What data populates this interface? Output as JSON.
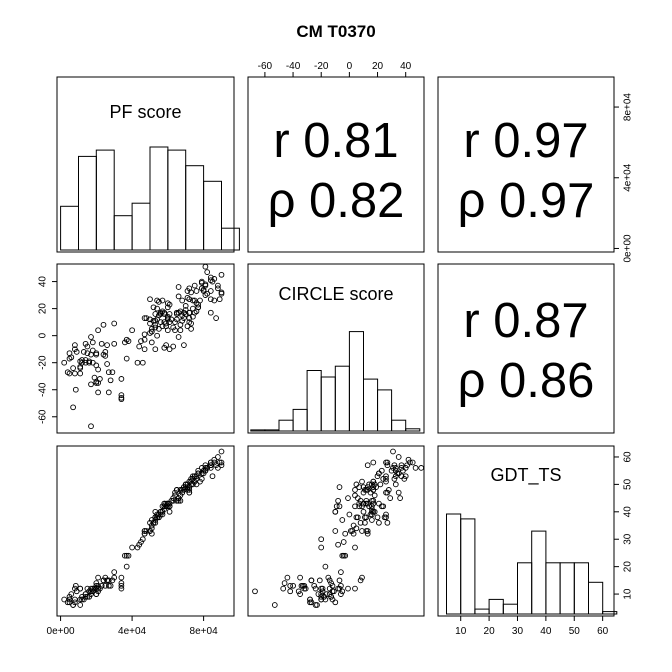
{
  "chart_data": {
    "type": "scatter",
    "title": "CM T0370",
    "variables": [
      "PF score",
      "CIRCLE score",
      "GDT_TS"
    ],
    "axes": {
      "pf": {
        "ticks": [
          0,
          40000,
          80000
        ],
        "tick_labels": [
          "0e+00",
          "4e+04",
          "8e+04"
        ],
        "range": [
          -2000,
          97000
        ]
      },
      "circle": {
        "ticks": [
          -60,
          -40,
          -20,
          0,
          20,
          40
        ],
        "tick_labels": [
          "-60",
          "-40",
          "-20",
          "0",
          "20",
          "40"
        ],
        "range": [
          -72,
          53
        ]
      },
      "gdt": {
        "ticks": [
          10,
          20,
          30,
          40,
          50,
          60
        ],
        "tick_labels": [
          "10",
          "20",
          "30",
          "40",
          "50",
          "60"
        ],
        "range": [
          2,
          64
        ]
      }
    },
    "correlations": [
      {
        "row": 0,
        "col": 1,
        "r_label": "r 0.81",
        "rho_label": "ρ 0.82"
      },
      {
        "row": 0,
        "col": 2,
        "r_label": "r 0.97",
        "rho_label": "ρ 0.97"
      },
      {
        "row": 1,
        "col": 2,
        "r_label": "r 0.87",
        "rho_label": "ρ 0.86"
      }
    ],
    "histograms": {
      "pf": {
        "edges": [
          0,
          10000,
          20000,
          30000,
          40000,
          50000,
          60000,
          70000,
          80000,
          90000,
          100000
        ],
        "counts": [
          14,
          30,
          32,
          11,
          15,
          33,
          32,
          27,
          22,
          7
        ]
      },
      "circle": {
        "edges": [
          -70,
          -60,
          -50,
          -40,
          -30,
          -20,
          -10,
          0,
          10,
          20,
          30,
          40,
          50
        ],
        "counts": [
          0.5,
          0.5,
          5,
          10,
          28,
          25,
          30,
          46,
          24,
          19,
          5,
          1
        ]
      },
      "gdt": {
        "edges": [
          5,
          10,
          15,
          20,
          25,
          30,
          35,
          40,
          45,
          50,
          55,
          60,
          65
        ],
        "counts": [
          41,
          39,
          2,
          6,
          4,
          21,
          34,
          21,
          21,
          21,
          13,
          1
        ]
      }
    },
    "points": [
      [
        8000,
        -7,
        12
      ],
      [
        75000,
        37,
        53
      ],
      [
        8500,
        -40,
        13
      ],
      [
        18000,
        -5,
        11
      ],
      [
        16000,
        -20,
        9
      ],
      [
        61000,
        10,
        43
      ],
      [
        37000,
        -17,
        20
      ],
      [
        40000,
        4,
        27
      ],
      [
        72000,
        17,
        48
      ],
      [
        11000,
        -19,
        12
      ],
      [
        90000,
        32,
        57
      ],
      [
        85000,
        40,
        53
      ],
      [
        20000,
        -13,
        14
      ],
      [
        51000,
        3,
        32
      ],
      [
        75000,
        17,
        51
      ],
      [
        66000,
        36,
        45
      ],
      [
        51000,
        3,
        35
      ],
      [
        50000,
        27,
        36
      ],
      [
        63000,
        6,
        45
      ],
      [
        2000,
        -20,
        8
      ],
      [
        69000,
        17,
        49
      ],
      [
        59000,
        -7,
        42
      ],
      [
        21000,
        -25,
        13
      ],
      [
        73000,
        32,
        52
      ],
      [
        86000,
        26,
        58
      ],
      [
        53000,
        6,
        38
      ],
      [
        34000,
        -46,
        14
      ],
      [
        65000,
        12,
        48
      ],
      [
        21000,
        4,
        12
      ],
      [
        4000,
        -27,
        7
      ],
      [
        59000,
        9,
        42
      ],
      [
        67000,
        8,
        44
      ],
      [
        55000,
        25,
        38
      ],
      [
        57000,
        26,
        39
      ],
      [
        17000,
        -14,
        10
      ],
      [
        72000,
        17,
        51
      ],
      [
        68000,
        15,
        47
      ],
      [
        11000,
        -23,
        6
      ],
      [
        80000,
        34,
        54
      ],
      [
        50000,
        2,
        33
      ],
      [
        81000,
        37,
        57
      ],
      [
        88000,
        37,
        56
      ],
      [
        89000,
        27,
        58
      ],
      [
        53000,
        11,
        38
      ],
      [
        15000,
        -8,
        12
      ],
      [
        84000,
        41,
        57
      ],
      [
        87000,
        13,
        57
      ],
      [
        81000,
        30,
        55
      ],
      [
        78000,
        26,
        51
      ],
      [
        90000,
        31,
        62
      ],
      [
        12000,
        -18,
        9
      ],
      [
        55000,
        15,
        39
      ],
      [
        77000,
        23,
        55
      ],
      [
        76000,
        24,
        52
      ],
      [
        20000,
        -22,
        10
      ],
      [
        18000,
        -20,
        12
      ],
      [
        75000,
        26,
        53
      ],
      [
        76000,
        33,
        53
      ],
      [
        77000,
        21,
        54
      ],
      [
        70000,
        19,
        49
      ],
      [
        27000,
        -42,
        13
      ],
      [
        72000,
        13,
        49
      ],
      [
        16000,
        -19,
        11
      ],
      [
        11000,
        -24,
        12
      ],
      [
        64000,
        10,
        47
      ],
      [
        81000,
        38,
        55
      ],
      [
        37000,
        -3,
        24
      ],
      [
        60000,
        13,
        43
      ],
      [
        7000,
        -24,
        6
      ],
      [
        53000,
        -10,
        40
      ],
      [
        56000,
        17,
        40
      ],
      [
        8000,
        -10,
        7
      ],
      [
        66000,
        -1,
        45
      ],
      [
        74000,
        26,
        52
      ],
      [
        66000,
        29,
        45
      ],
      [
        57000,
        18,
        40
      ],
      [
        59000,
        7,
        43
      ],
      [
        47000,
        13,
        32
      ],
      [
        17000,
        -1,
        12
      ],
      [
        34000,
        -44,
        16
      ],
      [
        61000,
        16,
        42
      ],
      [
        56000,
        16,
        40
      ],
      [
        30000,
        -6,
        18
      ],
      [
        30000,
        9,
        16
      ],
      [
        14000,
        -20,
        10
      ],
      [
        43000,
        -20,
        27
      ],
      [
        79000,
        39,
        52
      ],
      [
        26000,
        -7,
        15
      ],
      [
        25000,
        -15,
        16
      ],
      [
        19000,
        -31,
        12
      ],
      [
        84000,
        27,
        57
      ],
      [
        68000,
        11,
        48
      ],
      [
        84000,
        43,
        58
      ],
      [
        69000,
        -7,
        49
      ],
      [
        71000,
        7,
        49
      ],
      [
        80000,
        33,
        55
      ],
      [
        60000,
        12,
        43
      ],
      [
        27000,
        -27,
        15
      ],
      [
        20000,
        -34,
        13
      ],
      [
        64000,
        4,
        46
      ],
      [
        14000,
        -6,
        10
      ],
      [
        73000,
        5,
        50
      ],
      [
        84000,
        17,
        58
      ],
      [
        60000,
        24,
        42
      ],
      [
        52000,
        11,
        36
      ],
      [
        5000,
        -17,
        8
      ],
      [
        73000,
        9,
        51
      ],
      [
        63000,
        -8,
        44
      ],
      [
        11000,
        -28,
        8
      ],
      [
        21000,
        -42,
        11
      ],
      [
        53000,
        16,
        37
      ],
      [
        48000,
        13,
        33
      ],
      [
        74000,
        14,
        50
      ],
      [
        46000,
        -20,
        30
      ],
      [
        5000,
        -13,
        9
      ],
      [
        58000,
        17,
        43
      ],
      [
        57000,
        7,
        42
      ],
      [
        13000,
        -12,
        8
      ],
      [
        28000,
        -33,
        13
      ],
      [
        72000,
        27,
        47
      ],
      [
        50000,
        9,
        33
      ],
      [
        70000,
        22,
        50
      ],
      [
        81000,
        51,
        56
      ],
      [
        56000,
        16,
        39
      ],
      [
        17000,
        -67,
        11
      ],
      [
        86000,
        42,
        59
      ],
      [
        45000,
        -4,
        29
      ],
      [
        72000,
        35,
        47
      ],
      [
        71000,
        33,
        50
      ],
      [
        68000,
        26,
        47
      ],
      [
        24000,
        8,
        15
      ],
      [
        54000,
        12,
        38
      ],
      [
        20000,
        -35,
        10
      ],
      [
        67000,
        18,
        46
      ],
      [
        77000,
        21,
        54
      ],
      [
        55000,
        5,
        38
      ],
      [
        82000,
        47,
        56
      ],
      [
        47000,
        1,
        33
      ],
      [
        56000,
        10,
        40
      ],
      [
        14000,
        -18,
        9
      ],
      [
        88000,
        35,
        60
      ],
      [
        69000,
        13,
        48
      ],
      [
        79000,
        35,
        54
      ],
      [
        26000,
        -21,
        15
      ],
      [
        9000,
        -12,
        11
      ],
      [
        34000,
        -32,
        13
      ],
      [
        6000,
        -16,
        10
      ],
      [
        51000,
        -5,
        37
      ],
      [
        54000,
        20,
        38
      ],
      [
        7000,
        -53,
        6
      ],
      [
        72000,
        10,
        49
      ],
      [
        21000,
        -35,
        16
      ],
      [
        34000,
        -47,
        12
      ],
      [
        84000,
        33,
        56
      ],
      [
        22000,
        -32,
        12
      ],
      [
        58000,
        -9,
        42
      ],
      [
        66000,
        17,
        44
      ],
      [
        17000,
        -36,
        11
      ],
      [
        38000,
        -4,
        24
      ],
      [
        76000,
        18,
        50
      ],
      [
        18000,
        -11,
        11
      ],
      [
        74000,
        20,
        53
      ],
      [
        60000,
        14,
        42
      ],
      [
        29000,
        -27,
        15
      ],
      [
        8000,
        -28,
        8
      ],
      [
        67000,
        4,
        48
      ],
      [
        60000,
        21,
        43
      ],
      [
        50000,
        12,
        33
      ],
      [
        51000,
        5,
        34
      ],
      [
        54000,
        26,
        38
      ],
      [
        61000,
        23,
        42
      ],
      [
        65000,
        16,
        44
      ],
      [
        23000,
        -6,
        13
      ],
      [
        53000,
        8,
        36
      ],
      [
        60000,
        4,
        42
      ],
      [
        58000,
        10,
        43
      ],
      [
        20000,
        -14,
        12
      ],
      [
        52000,
        21,
        36
      ],
      [
        90000,
        45,
        58
      ],
      [
        65000,
        17,
        48
      ],
      [
        79000,
        40,
        56
      ],
      [
        25000,
        -12,
        13
      ],
      [
        47000,
        -10,
        33
      ],
      [
        24000,
        -14,
        15
      ],
      [
        15000,
        -13,
        9
      ],
      [
        71000,
        28,
        48
      ],
      [
        62000,
        12,
        44
      ],
      [
        36000,
        -5,
        24
      ],
      [
        47000,
        -3,
        32
      ],
      [
        70000,
        16,
        50
      ],
      [
        44000,
        -8,
        28
      ],
      [
        58000,
        16,
        41
      ],
      [
        12000,
        -20,
        8
      ],
      [
        61000,
        -10,
        40
      ],
      [
        82000,
        31,
        56
      ],
      [
        54000,
        0,
        39
      ],
      [
        5000,
        -28,
        7
      ]
    ]
  }
}
